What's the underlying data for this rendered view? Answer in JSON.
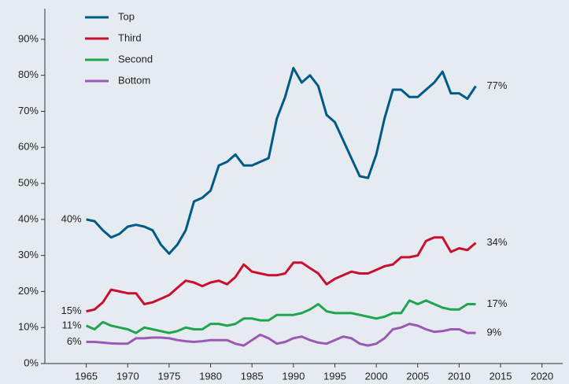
{
  "chart_data": {
    "type": "line",
    "x": [
      1965,
      1966,
      1967,
      1968,
      1969,
      1970,
      1971,
      1972,
      1973,
      1974,
      1975,
      1976,
      1977,
      1978,
      1979,
      1980,
      1981,
      1982,
      1983,
      1984,
      1985,
      1986,
      1987,
      1988,
      1989,
      1990,
      1991,
      1992,
      1993,
      1994,
      1995,
      1996,
      1997,
      1998,
      1999,
      2000,
      2001,
      2002,
      2003,
      2004,
      2005,
      2006,
      2007,
      2008,
      2009,
      2010,
      2011,
      2012
    ],
    "series": [
      {
        "name": "Top",
        "color": "#005a87",
        "start_label": "40%",
        "end_label": "77%",
        "values": [
          40,
          39.5,
          37,
          35,
          36,
          38,
          38.5,
          38,
          37,
          33,
          30.5,
          33,
          37,
          45,
          46,
          48,
          55,
          56,
          58,
          55,
          55,
          56,
          57,
          68,
          74,
          82,
          78,
          80,
          77,
          69,
          67,
          62,
          57,
          52,
          51.5,
          58,
          68,
          76,
          76,
          74,
          74,
          76,
          78,
          81,
          75,
          75,
          73.5,
          77
        ]
      },
      {
        "name": "Third",
        "color": "#c8102e",
        "start_label": "15%",
        "end_label": "34%",
        "values": [
          14.5,
          15,
          17,
          20.5,
          20,
          19.5,
          19.5,
          16.5,
          17,
          18,
          19,
          21,
          23,
          22.5,
          21.5,
          22.5,
          23,
          22,
          24,
          27.5,
          25.5,
          25,
          24.5,
          24.5,
          25,
          28,
          28,
          26.5,
          25,
          22,
          23.5,
          24.5,
          25.5,
          25,
          25,
          26,
          27,
          27.5,
          29.5,
          29.5,
          30,
          34,
          35,
          35,
          31,
          32,
          31.5,
          33.5
        ]
      },
      {
        "name": "Second",
        "color": "#1ea64e",
        "start_label": "11%",
        "end_label": "17%",
        "values": [
          10.5,
          9.5,
          11.5,
          10.5,
          10,
          9.5,
          8.5,
          10,
          9.5,
          9,
          8.5,
          9,
          10,
          9.5,
          9.5,
          11,
          11,
          10.5,
          11,
          12.5,
          12.5,
          12,
          12,
          13.5,
          13.5,
          13.5,
          14,
          15,
          16.5,
          14.5,
          14,
          14,
          14,
          13.5,
          13,
          12.5,
          13,
          14,
          14,
          17.5,
          16.5,
          17.5,
          16.5,
          15.5,
          15,
          15,
          16.5,
          16.5
        ]
      },
      {
        "name": "Bottom",
        "color": "#9b59b6",
        "start_label": "6%",
        "end_label": "9%",
        "values": [
          6,
          6,
          5.8,
          5.6,
          5.5,
          5.5,
          7,
          7,
          7.2,
          7.2,
          7,
          6.5,
          6.2,
          6,
          6.2,
          6.5,
          6.5,
          6.5,
          5.5,
          5,
          6.5,
          8,
          7,
          5.5,
          6,
          7,
          7.5,
          6.5,
          5.8,
          5.5,
          6.5,
          7.5,
          7,
          5.5,
          5,
          5.5,
          7,
          9.5,
          10,
          11,
          10.5,
          9.5,
          8.8,
          9,
          9.5,
          9.5,
          8.5,
          8.5
        ]
      }
    ],
    "xlim": [
      1960,
      2022.5
    ],
    "ylim": [
      0,
      98.5
    ],
    "xticks": [
      1965,
      1970,
      1975,
      1980,
      1985,
      1990,
      1995,
      2000,
      2005,
      2010,
      2015,
      2020
    ],
    "yticks": [
      {
        "value": 0,
        "label": "0%"
      },
      {
        "value": 10,
        "label": "10%"
      },
      {
        "value": 20,
        "label": "20%"
      },
      {
        "value": 30,
        "label": "30%"
      },
      {
        "value": 40,
        "label": "40%"
      },
      {
        "value": 50,
        "label": "50%"
      },
      {
        "value": 60,
        "label": "60%"
      },
      {
        "value": 70,
        "label": "70%"
      },
      {
        "value": 80,
        "label": "80%"
      },
      {
        "value": 90,
        "label": "90%"
      }
    ],
    "grid": false,
    "legend": "top-left"
  }
}
